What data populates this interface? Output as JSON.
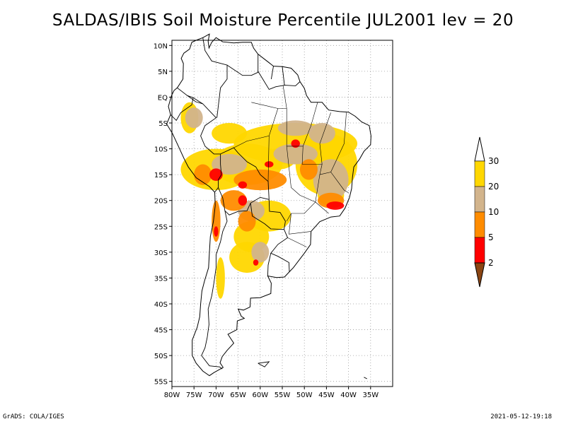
{
  "title": "SALDAS/IBIS Soil Moisture Percentile JUL2001 lev = 20",
  "map": {
    "lon_range": [
      -80,
      -30
    ],
    "lat_range": [
      -56,
      11
    ],
    "lon_ticks": [
      {
        "value": -80,
        "label": "80W"
      },
      {
        "value": -75,
        "label": "75W"
      },
      {
        "value": -70,
        "label": "70W"
      },
      {
        "value": -65,
        "label": "65W"
      },
      {
        "value": -60,
        "label": "60W"
      },
      {
        "value": -55,
        "label": "55W"
      },
      {
        "value": -50,
        "label": "50W"
      },
      {
        "value": -45,
        "label": "45W"
      },
      {
        "value": -40,
        "label": "40W"
      },
      {
        "value": -35,
        "label": "35W"
      }
    ],
    "lat_ticks": [
      {
        "value": 10,
        "label": "10N"
      },
      {
        "value": 5,
        "label": "5N"
      },
      {
        "value": 0,
        "label": "EQ"
      },
      {
        "value": -5,
        "label": "5S"
      },
      {
        "value": -10,
        "label": "10S"
      },
      {
        "value": -15,
        "label": "15S"
      },
      {
        "value": -20,
        "label": "20S"
      },
      {
        "value": -25,
        "label": "25S"
      },
      {
        "value": -30,
        "label": "30S"
      },
      {
        "value": -35,
        "label": "35S"
      },
      {
        "value": -40,
        "label": "40S"
      },
      {
        "value": -45,
        "label": "45S"
      },
      {
        "value": -50,
        "label": "50S"
      },
      {
        "value": -55,
        "label": "55S"
      }
    ],
    "grid": true
  },
  "legend": {
    "bins": [
      {
        "range": "below 2",
        "color": "#8b4513"
      },
      {
        "range": "2-5",
        "color": "#ff0000"
      },
      {
        "range": "5-10",
        "color": "#ff8c00"
      },
      {
        "range": "10-20",
        "color": "#d2b48c"
      },
      {
        "range": "20-30",
        "color": "#ffd700"
      },
      {
        "range": "above 30",
        "color": "#ffffff"
      }
    ],
    "labels": [
      "2",
      "5",
      "10",
      "20",
      "30"
    ]
  },
  "footer": {
    "left": "GrADS: COLA/IGES",
    "right": "2021-05-12-19:18"
  }
}
